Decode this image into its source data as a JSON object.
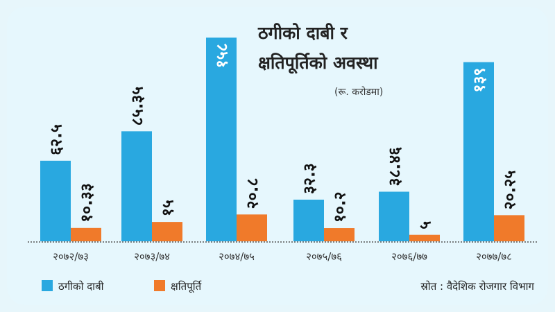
{
  "chart_data": {
    "type": "bar",
    "title_lines": [
      "ठगीको दाबी र",
      "क्षतिपूर्तिको अवस्था"
    ],
    "unit": "(रू. करोडमा)",
    "categories": [
      "२०७२/७३",
      "२०७३/७४",
      "२०७४/७५",
      "२०७५/७६",
      "२०७६/७७",
      "२०७७/७८"
    ],
    "series": [
      {
        "name": "ठगीको दाबी",
        "color": "#29a8e0",
        "values": [
          62.5,
          85.35,
          158,
          32.3,
          38.46,
          139
        ],
        "labels": [
          "६२.५",
          "८५.३५",
          "१५८",
          "३२.३",
          "३८.४६",
          "१३९"
        ]
      },
      {
        "name": "क्षतिपूर्ति",
        "color": "#f07a2a",
        "values": [
          10.33,
          15,
          20.8,
          10.2,
          5,
          20.25
        ],
        "labels": [
          "१०.३३",
          "१५",
          "२०.८",
          "१०.२",
          "५",
          "२०.२५"
        ]
      }
    ],
    "ylim": [
      0,
      170
    ],
    "source": "स्रोत : वैदेशिक रोजगार विभाग"
  }
}
